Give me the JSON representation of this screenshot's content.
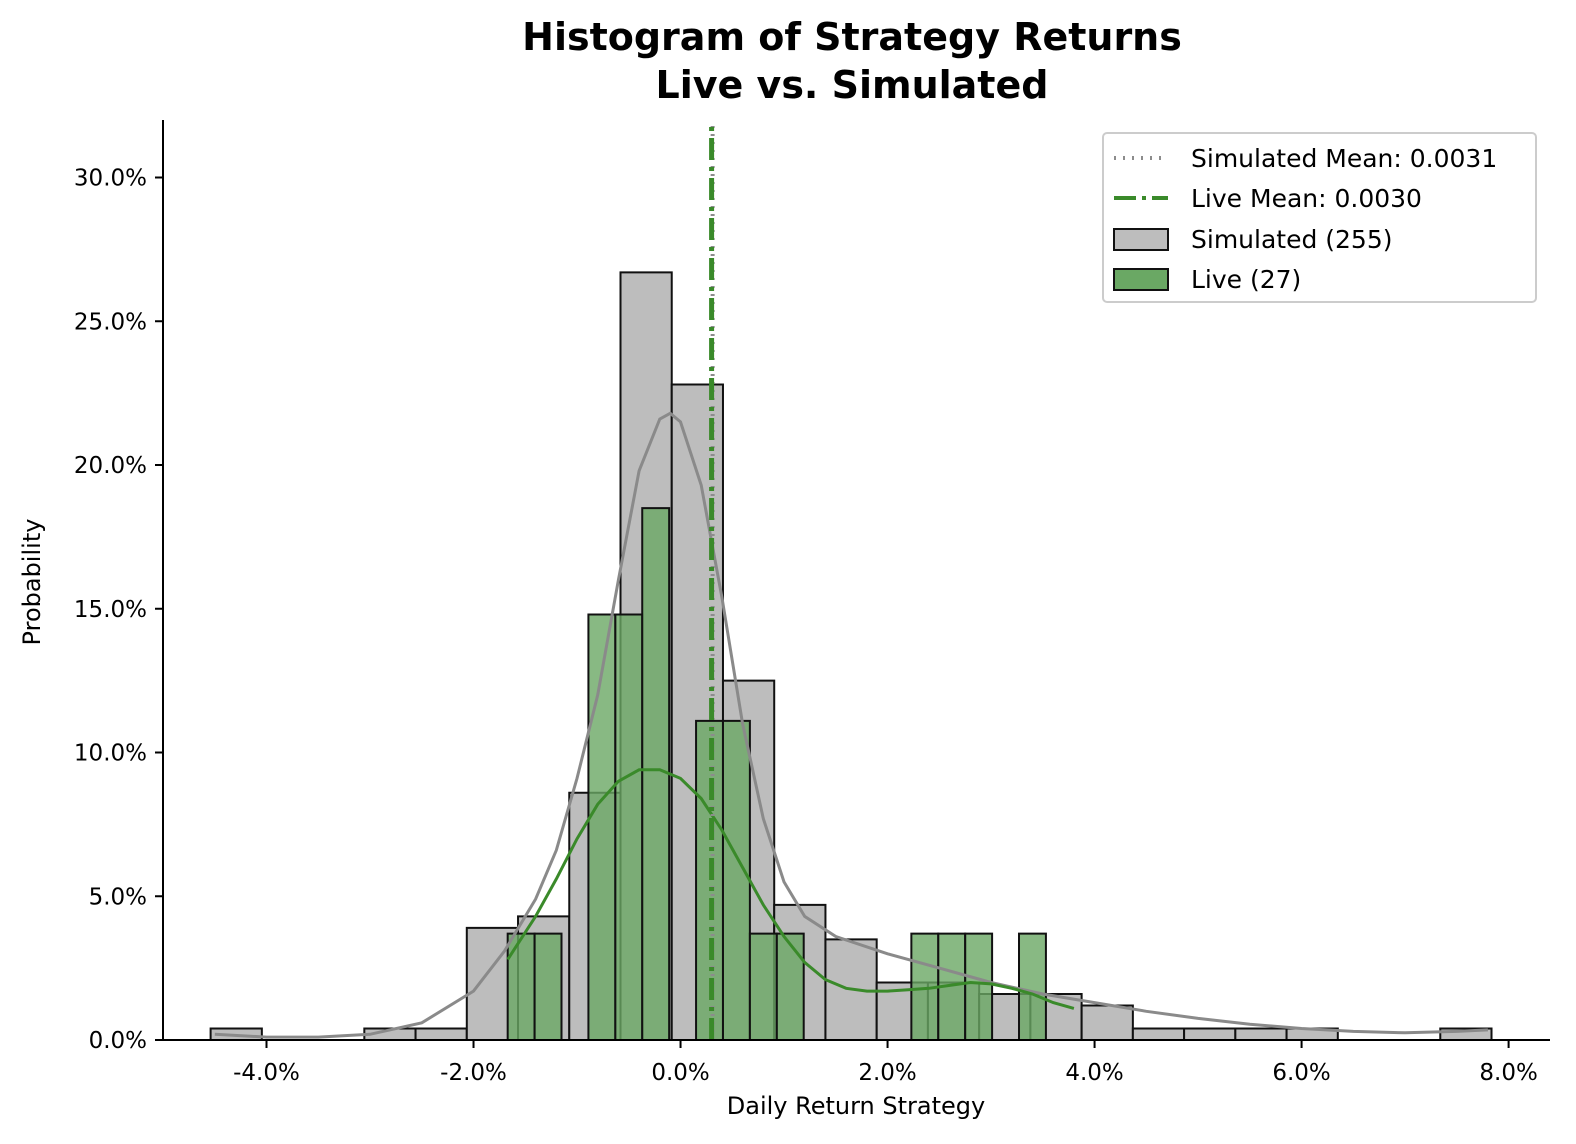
{
  "chart_data": {
    "type": "bar",
    "title": "Histogram of Strategy Returns",
    "subtitle": "Live vs. Simulated",
    "xlabel": "Daily Return Strategy",
    "ylabel": "Probability",
    "xlim": [
      -5.0,
      8.4
    ],
    "ylim": [
      0,
      32.0
    ],
    "x_ticks": [
      -4.0,
      -2.0,
      0.0,
      2.0,
      4.0,
      6.0,
      8.0
    ],
    "x_tick_labels": [
      "-4.0%",
      "-2.0%",
      "0.0%",
      "2.0%",
      "4.0%",
      "6.0%",
      "8.0%"
    ],
    "y_ticks": [
      0,
      5,
      10,
      15,
      20,
      25,
      30
    ],
    "y_tick_labels": [
      "0.0%",
      "5.0%",
      "10.0%",
      "15.0%",
      "20.0%",
      "25.0%",
      "30.0%"
    ],
    "grid": false,
    "legend_position": "top-right",
    "simulated_mean_pct": 0.31,
    "live_mean_pct": 0.3,
    "colors": {
      "simulated_fill": "#bdbdbd",
      "simulated_kde": "#8a8a8a",
      "simulated_mean": "#8c8c8c",
      "live_fill": "#6aa864",
      "live_kde": "#3a8a2a",
      "live_mean": "#3a8a2a",
      "edge": "#111111"
    },
    "series": [
      {
        "name": "Simulated (255)",
        "bin_start": -4.54,
        "bin_width": 0.495,
        "values": [
          0.4,
          0.0,
          0.0,
          0.4,
          0.4,
          3.9,
          4.3,
          8.6,
          26.7,
          22.8,
          12.5,
          4.7,
          3.5,
          2.0,
          2.0,
          1.6,
          1.6,
          1.2,
          0.4,
          0.4,
          0.4,
          0.4,
          0.0,
          0.0,
          0.4
        ]
      },
      {
        "name": "Live (27)",
        "bin_start": -1.67,
        "bin_width": 0.26,
        "values": [
          3.7,
          3.7,
          0.0,
          14.8,
          14.8,
          18.5,
          0.0,
          11.1,
          11.1,
          3.7,
          3.7,
          0.0,
          0.0,
          0.0,
          0.0,
          3.7,
          3.7,
          3.7,
          0.0,
          3.7
        ]
      }
    ],
    "kde": [
      {
        "name": "Simulated KDE",
        "x": [
          -4.5,
          -4.0,
          -3.5,
          -3.0,
          -2.5,
          -2.0,
          -1.7,
          -1.4,
          -1.2,
          -1.0,
          -0.8,
          -0.6,
          -0.4,
          -0.2,
          -0.1,
          0.0,
          0.2,
          0.4,
          0.6,
          0.8,
          1.0,
          1.2,
          1.5,
          2.0,
          2.5,
          3.0,
          3.5,
          4.0,
          4.5,
          5.0,
          5.5,
          6.0,
          6.5,
          7.0,
          7.5,
          7.8
        ],
        "y": [
          0.2,
          0.1,
          0.1,
          0.2,
          0.6,
          1.7,
          3.1,
          4.9,
          6.6,
          9.1,
          12.0,
          16.0,
          19.8,
          21.6,
          21.8,
          21.5,
          19.3,
          15.4,
          11.0,
          7.7,
          5.5,
          4.3,
          3.6,
          3.0,
          2.5,
          2.0,
          1.6,
          1.3,
          1.0,
          0.75,
          0.55,
          0.4,
          0.3,
          0.25,
          0.3,
          0.35
        ]
      },
      {
        "name": "Live KDE",
        "x": [
          -1.67,
          -1.4,
          -1.2,
          -1.0,
          -0.8,
          -0.6,
          -0.4,
          -0.2,
          0.0,
          0.2,
          0.4,
          0.6,
          0.8,
          1.0,
          1.2,
          1.4,
          1.6,
          1.8,
          2.0,
          2.2,
          2.4,
          2.6,
          2.8,
          3.0,
          3.2,
          3.4,
          3.6,
          3.8
        ],
        "y": [
          2.8,
          4.3,
          5.6,
          7.0,
          8.2,
          9.0,
          9.4,
          9.4,
          9.1,
          8.4,
          7.3,
          6.0,
          4.7,
          3.6,
          2.7,
          2.1,
          1.8,
          1.7,
          1.7,
          1.75,
          1.8,
          1.9,
          2.0,
          1.95,
          1.8,
          1.6,
          1.3,
          1.1
        ]
      }
    ],
    "legend": [
      {
        "label": "Simulated Mean: 0.0031",
        "kind": "dotted-line",
        "color": "#8c8c8c"
      },
      {
        "label": "Live Mean: 0.0030",
        "kind": "dashdot-line",
        "color": "#3a8a2a"
      },
      {
        "label": "Simulated (255)",
        "kind": "patch",
        "color": "#bdbdbd"
      },
      {
        "label": "Live (27)",
        "kind": "patch",
        "color": "#6aa864"
      }
    ]
  }
}
